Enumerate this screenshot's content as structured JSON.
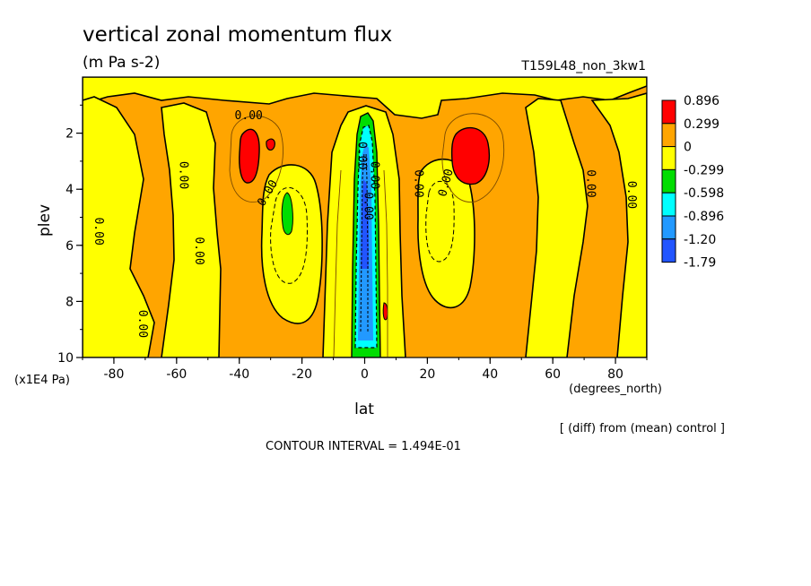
{
  "chart_data": {
    "type": "heatmap",
    "title": "vertical zonal momentum flux",
    "subtitle": "(m Pa s-2)",
    "run_label": "T159L48_non_3kw1",
    "xlabel": "lat",
    "x_units": "(degrees_north)",
    "ylabel": "plev",
    "y_units": "(x1E4 Pa)",
    "xlim": [
      -90,
      90
    ],
    "ylim": [
      10,
      0
    ],
    "x_ticks": [
      "-80",
      "-60",
      "-40",
      "-20",
      "0",
      "20",
      "40",
      "60",
      "80"
    ],
    "y_ticks": [
      "2",
      "4",
      "6",
      "8",
      "10"
    ],
    "note": "[ (diff) from (mean) control ]",
    "contour_interval": "CONTOUR INTERVAL = 1.494E-01",
    "contour_label": "0.00",
    "colorbar": [
      {
        "label": "0.896",
        "color": "#ff0000"
      },
      {
        "label": "0.299",
        "color": "#ffa500"
      },
      {
        "label": "0",
        "color": "#ffff00"
      },
      {
        "label": "-0.299",
        "color": "#00dd00"
      },
      {
        "label": "-0.598",
        "color": "#00ffff"
      },
      {
        "label": "-0.896",
        "color": "#2299ff"
      },
      {
        "label": "-1.20",
        "color": "#2255ff"
      },
      {
        "label": "-1.79",
        "color": ""
      }
    ],
    "features": [
      {
        "lat": -36,
        "plev": 2.8,
        "level": "0.299 to 0.896"
      },
      {
        "lat": 32,
        "plev": 2.8,
        "level": "0.299 to 0.896"
      },
      {
        "lat": -24,
        "plev": 5.0,
        "level": "-0.299 to -0.598"
      },
      {
        "lat": 0,
        "plev": 5.5,
        "level": "-0.896 to -1.79"
      },
      {
        "lat": 6,
        "plev": 8.5,
        "level": "0.299 to 0.896"
      }
    ]
  }
}
